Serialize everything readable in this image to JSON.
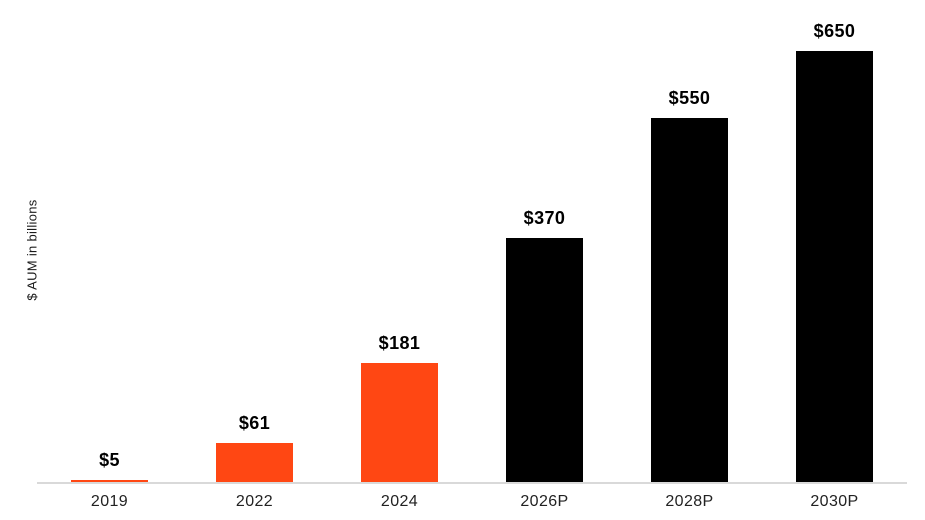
{
  "chart_data": {
    "type": "bar",
    "categories": [
      "2019",
      "2022",
      "2024",
      "2026P",
      "2028P",
      "2030P"
    ],
    "values": [
      5,
      61,
      181,
      370,
      550,
      650
    ],
    "value_labels": [
      "$5",
      "$61",
      "$181",
      "$370",
      "$550",
      "$650"
    ],
    "series_colors": [
      "#FF4713",
      "#FF4713",
      "#FF4713",
      "#000000",
      "#000000",
      "#000000"
    ],
    "title": "",
    "xlabel": "",
    "ylabel": "$ AUM in billions",
    "ylim": [
      0,
      650
    ],
    "grid": false,
    "legend": false,
    "colors": {
      "historical_bar": "#FF4713",
      "projected_bar": "#000000",
      "axis_line": "#D9D9D9",
      "value_label_text": "#000000",
      "tick_label_text": "#222222"
    }
  }
}
